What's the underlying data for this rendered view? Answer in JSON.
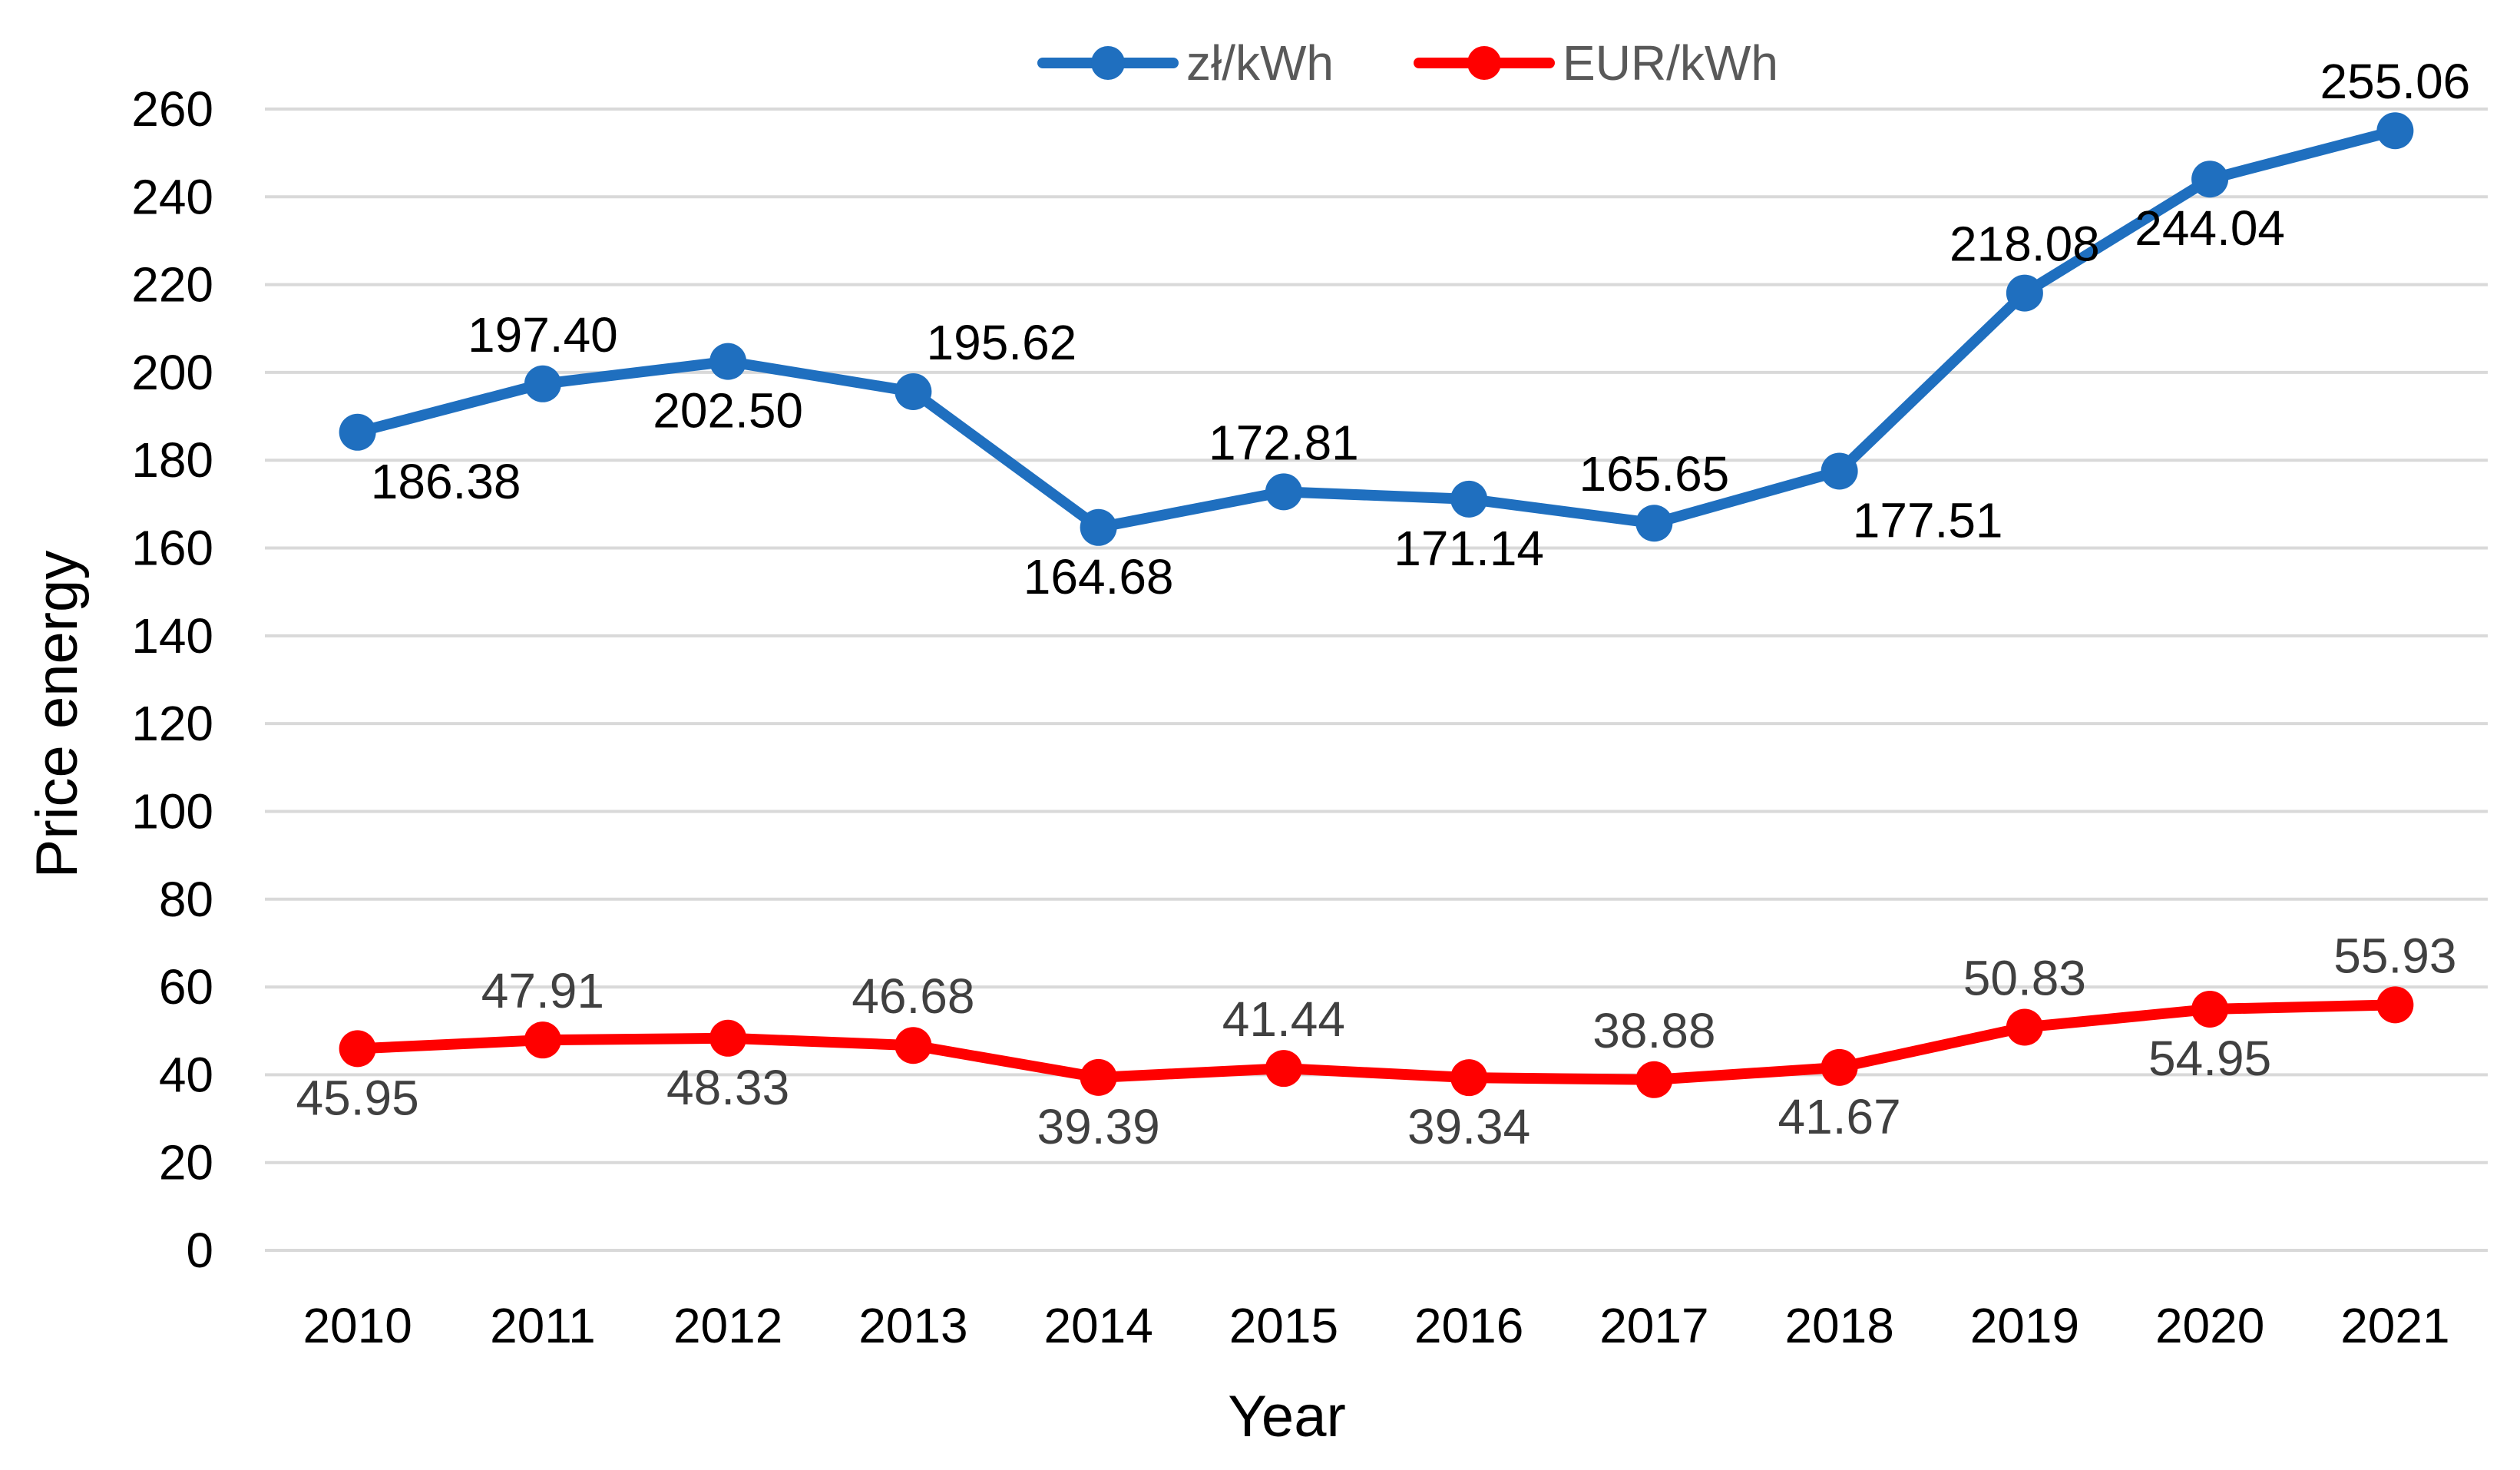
{
  "chart_data": {
    "type": "line",
    "title": "",
    "xlabel": "Year",
    "ylabel": "Price energy",
    "ylim": [
      0,
      260
    ],
    "yticks": [
      0,
      20,
      40,
      60,
      80,
      100,
      120,
      140,
      160,
      180,
      200,
      220,
      240,
      260
    ],
    "grid": true,
    "legend_position": "top-center",
    "categories": [
      "2010",
      "2011",
      "2012",
      "2013",
      "2014",
      "2015",
      "2016",
      "2017",
      "2018",
      "2019",
      "2020",
      "2021"
    ],
    "series": [
      {
        "name": "zł/kWh",
        "color": "#1F6FBF",
        "label_color": "#000000",
        "values": [
          186.38,
          197.4,
          202.5,
          195.62,
          164.68,
          172.81,
          171.14,
          165.65,
          177.51,
          218.08,
          244.04,
          255.06
        ],
        "labels": [
          "186.38",
          "197.40",
          "202.50",
          "195.62",
          "164.68",
          "172.81",
          "171.14",
          "165.65",
          "177.51",
          "218.08",
          "244.04",
          "255.06"
        ],
        "label_side": [
          "below-right",
          "above",
          "below",
          "above-right",
          "below",
          "above",
          "below",
          "above",
          "below-right",
          "above",
          "below",
          "above"
        ]
      },
      {
        "name": "EUR/kWh",
        "color": "#FF0000",
        "label_color": "#404040",
        "values": [
          45.95,
          47.91,
          48.33,
          46.68,
          39.39,
          41.44,
          39.34,
          38.88,
          41.67,
          50.83,
          54.95,
          55.93
        ],
        "labels": [
          "45.95",
          "47.91",
          "48.33",
          "46.68",
          "39.39",
          "41.44",
          "39.34",
          "38.88",
          "41.67",
          "50.83",
          "54.95",
          "55.93"
        ],
        "label_side": [
          "below",
          "above",
          "below",
          "above",
          "below",
          "above",
          "below",
          "above",
          "below",
          "above",
          "below",
          "above"
        ]
      }
    ]
  }
}
